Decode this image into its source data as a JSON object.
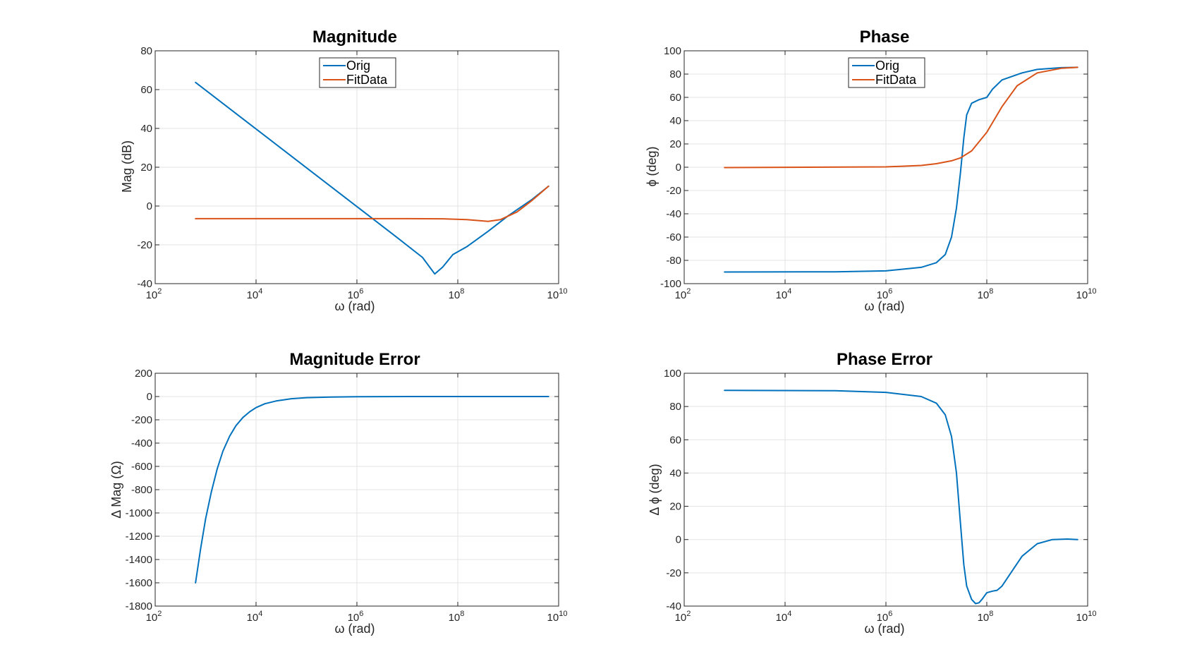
{
  "colors": {
    "orig": "#0072BD",
    "fit": "#D95319",
    "grid": "#e3e3e3",
    "axis": "#262626"
  },
  "chart_data": [
    {
      "type": "line",
      "title": "Magnitude",
      "xlabel": "ω (rad)",
      "ylabel": "Mag (dB)",
      "xscale": "log",
      "xlim": [
        100,
        10000000000
      ],
      "ylim": [
        -40,
        80
      ],
      "xticks": [
        {
          "value": 100,
          "base": "10",
          "exp": "2"
        },
        {
          "value": 10000,
          "base": "10",
          "exp": "4"
        },
        {
          "value": 1000000,
          "base": "10",
          "exp": "6"
        },
        {
          "value": 100000000,
          "base": "10",
          "exp": "8"
        },
        {
          "value": 10000000000,
          "base": "10",
          "exp": "10"
        }
      ],
      "yticks": [
        -40,
        -20,
        0,
        20,
        40,
        60,
        80
      ],
      "grid": true,
      "legend": "top-center",
      "series": [
        {
          "name": "Orig",
          "color_key": "orig",
          "x": [
            630,
            6300,
            63000,
            630000,
            2000000,
            6300000,
            20000000,
            35000000,
            50000000,
            80000000,
            150000000,
            400000000,
            1000000000,
            3000000000,
            6300000000
          ],
          "y": [
            63.7,
            43.7,
            23.7,
            3.7,
            -6.3,
            -16.3,
            -26.5,
            -35,
            -31.5,
            -25,
            -21,
            -13,
            -5,
            3.5,
            10.2
          ]
        },
        {
          "name": "FitData",
          "color_key": "fit",
          "x": [
            630,
            10000000,
            50000000,
            150000000,
            400000000,
            700000000,
            1500000000,
            3000000000,
            6300000000
          ],
          "y": [
            -6.5,
            -6.5,
            -6.6,
            -7,
            -7.9,
            -7,
            -3,
            3,
            10.2
          ]
        }
      ]
    },
    {
      "type": "line",
      "title": "Phase",
      "xlabel": "ω (rad)",
      "ylabel": "ϕ (deg)",
      "xscale": "log",
      "xlim": [
        100,
        10000000000
      ],
      "ylim": [
        -100,
        100
      ],
      "xticks": [
        {
          "value": 100,
          "base": "10",
          "exp": "2"
        },
        {
          "value": 10000,
          "base": "10",
          "exp": "4"
        },
        {
          "value": 1000000,
          "base": "10",
          "exp": "6"
        },
        {
          "value": 100000000,
          "base": "10",
          "exp": "8"
        },
        {
          "value": 10000000000,
          "base": "10",
          "exp": "10"
        }
      ],
      "yticks": [
        -100,
        -80,
        -60,
        -40,
        -20,
        0,
        20,
        40,
        60,
        80,
        100
      ],
      "grid": true,
      "legend": "top-left",
      "series": [
        {
          "name": "Orig",
          "color_key": "orig",
          "x": [
            630,
            100000,
            1000000,
            5000000,
            10000000,
            15000000,
            20000000,
            25000000,
            30000000,
            35000000,
            40000000,
            50000000,
            70000000,
            100000000,
            130000000,
            200000000,
            500000000,
            1000000000,
            3000000000,
            6300000000
          ],
          "y": [
            -90,
            -89.8,
            -89,
            -86,
            -82,
            -75,
            -60,
            -35,
            -5,
            25,
            45,
            55,
            58,
            60,
            67,
            75,
            81,
            84,
            85.5,
            85.8
          ]
        },
        {
          "name": "FitData",
          "color_key": "fit",
          "x": [
            630,
            1000000,
            5000000,
            10000000,
            20000000,
            30000000,
            50000000,
            100000000,
            200000000,
            400000000,
            1000000000,
            3000000000,
            6300000000
          ],
          "y": [
            -0.3,
            0.3,
            1.5,
            3,
            5.5,
            8,
            14,
            30,
            52,
            70,
            81,
            85,
            85.8
          ]
        }
      ]
    },
    {
      "type": "line",
      "title": "Magnitude Error",
      "xlabel": "ω (rad)",
      "ylabel": "Δ Mag (Ω)",
      "xscale": "log",
      "xlim": [
        100,
        10000000000
      ],
      "ylim": [
        -1800,
        200
      ],
      "xticks": [
        {
          "value": 100,
          "base": "10",
          "exp": "2"
        },
        {
          "value": 10000,
          "base": "10",
          "exp": "4"
        },
        {
          "value": 1000000,
          "base": "10",
          "exp": "6"
        },
        {
          "value": 100000000,
          "base": "10",
          "exp": "8"
        },
        {
          "value": 10000000000,
          "base": "10",
          "exp": "10"
        }
      ],
      "yticks": [
        -1800,
        -1600,
        -1400,
        -1200,
        -1000,
        -800,
        -600,
        -400,
        -200,
        0,
        200
      ],
      "grid": true,
      "legend": "none",
      "series": [
        {
          "name": "",
          "color_key": "orig",
          "x": [
            630,
            800,
            1000,
            1300,
            1700,
            2200,
            3000,
            4000,
            5500,
            7500,
            10000,
            15000,
            25000,
            50000,
            100000,
            300000,
            1000000,
            10000000,
            100000000,
            1000000000,
            6300000000
          ],
          "y": [
            -1600,
            -1300,
            -1050,
            -820,
            -620,
            -470,
            -340,
            -250,
            -180,
            -130,
            -95,
            -62,
            -38,
            -19,
            -10,
            -4,
            -1.5,
            0,
            0,
            0,
            0
          ]
        }
      ]
    },
    {
      "type": "line",
      "title": "Phase Error",
      "xlabel": "ω (rad)",
      "ylabel": "Δ ϕ (deg)",
      "xscale": "log",
      "xlim": [
        100,
        10000000000
      ],
      "ylim": [
        -40,
        100
      ],
      "xticks": [
        {
          "value": 100,
          "base": "10",
          "exp": "2"
        },
        {
          "value": 10000,
          "base": "10",
          "exp": "4"
        },
        {
          "value": 1000000,
          "base": "10",
          "exp": "6"
        },
        {
          "value": 100000000,
          "base": "10",
          "exp": "8"
        },
        {
          "value": 10000000000,
          "base": "10",
          "exp": "10"
        }
      ],
      "yticks": [
        -40,
        -20,
        0,
        20,
        40,
        60,
        80,
        100
      ],
      "grid": true,
      "legend": "none",
      "series": [
        {
          "name": "",
          "color_key": "orig",
          "x": [
            630,
            100000,
            1000000,
            5000000,
            10000000,
            15000000,
            20000000,
            25000000,
            30000000,
            35000000,
            40000000,
            50000000,
            60000000,
            70000000,
            80000000,
            100000000,
            130000000,
            160000000,
            200000000,
            300000000,
            500000000,
            1000000000,
            2000000000,
            4000000000,
            6300000000
          ],
          "y": [
            89.7,
            89.5,
            88.5,
            86,
            82,
            75,
            62,
            40,
            10,
            -15,
            -28,
            -36,
            -38.5,
            -38,
            -36,
            -32,
            -31,
            -30.5,
            -28,
            -20,
            -10,
            -2.5,
            0,
            0.3,
            0
          ]
        }
      ]
    }
  ]
}
